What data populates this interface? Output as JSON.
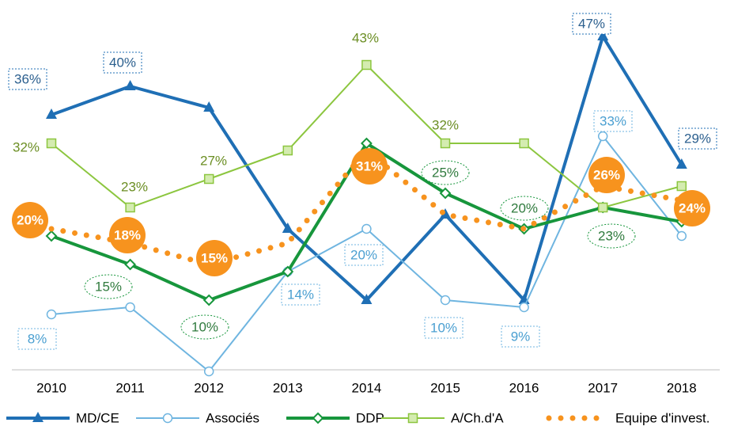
{
  "chart_data": {
    "type": "line",
    "categories": [
      "2010",
      "2011",
      "2012",
      "2013",
      "2014",
      "2015",
      "2016",
      "2017",
      "2018"
    ],
    "ylim": [
      0,
      50
    ],
    "series": [
      {
        "name": "MD/CE",
        "color": "#1f6fb5",
        "marker": "triangle",
        "style": "solid",
        "values": [
          36,
          40,
          37,
          20,
          10,
          22,
          10,
          47,
          29
        ],
        "value_labels": [
          "36%",
          "40%",
          null,
          null,
          null,
          null,
          null,
          "47%",
          "29%"
        ]
      },
      {
        "name": "Associés",
        "color": "#6fb5e0",
        "marker": "circle",
        "style": "solid",
        "values": [
          8,
          9,
          0,
          14,
          20,
          10,
          9,
          33,
          19
        ],
        "value_labels": [
          "8%",
          null,
          null,
          "14%",
          "20%",
          "10%",
          "9%",
          "33%",
          null
        ]
      },
      {
        "name": "DDP",
        "color": "#17963c",
        "marker": "diamond",
        "style": "solid",
        "values": [
          19,
          15,
          10,
          14,
          32,
          25,
          20,
          23,
          21
        ],
        "value_labels": [
          null,
          "15%",
          "10%",
          null,
          null,
          "25%",
          "20%",
          "23%",
          null
        ]
      },
      {
        "name": "A/Ch.d'A",
        "color": "#8cc63f",
        "marker": "square",
        "style": "solid",
        "values": [
          32,
          23,
          27,
          31,
          43,
          32,
          32,
          23,
          26
        ],
        "value_labels": [
          "32%",
          "23%",
          "27%",
          null,
          "43%",
          "32%",
          null,
          null,
          null
        ]
      },
      {
        "name": "Equipe d'invest.",
        "color": "#f7931e",
        "marker": "none",
        "style": "dotted",
        "values": [
          20,
          18,
          15,
          18,
          31,
          22,
          20,
          26,
          24
        ],
        "value_labels": [
          "20%",
          "18%",
          "15%",
          null,
          "31%",
          null,
          null,
          "26%",
          "24%"
        ]
      }
    ]
  }
}
